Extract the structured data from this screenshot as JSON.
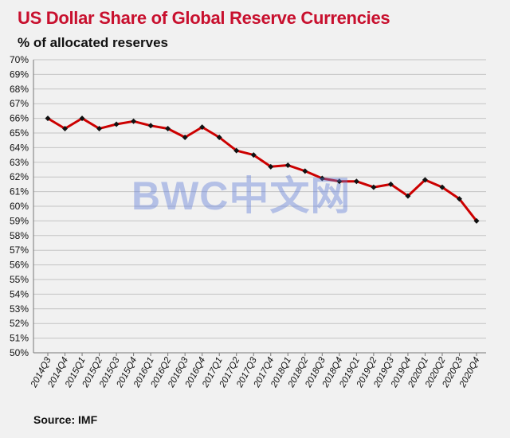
{
  "title": "US Dollar Share of Global  Reserve Currencies",
  "subtitle": "% of allocated reserves",
  "source": "Source: IMF",
  "watermark": "BWC中文网",
  "colors": {
    "title": "#c8102e",
    "line": "#cc0000",
    "marker": "#111111",
    "grid": "#c4c4c4",
    "background": "#f1f1f1"
  },
  "chart_data": {
    "type": "line",
    "title": "US Dollar Share of Global  Reserve Currencies",
    "ylabel": "% of allocated reserves",
    "xlabel": "",
    "ylim": [
      50,
      70
    ],
    "grid": true,
    "legend": "none",
    "y_ticks": [
      "50%",
      "51%",
      "52%",
      "53%",
      "54%",
      "55%",
      "56%",
      "57%",
      "58%",
      "59%",
      "60%",
      "61%",
      "62%",
      "63%",
      "64%",
      "65%",
      "66%",
      "67%",
      "68%",
      "69%",
      "70%"
    ],
    "categories": [
      "2014Q3",
      "2014Q4",
      "2015Q1",
      "2015Q2",
      "2015Q3",
      "2015Q4",
      "2016Q1",
      "2016Q2",
      "2016Q3",
      "2016Q4",
      "2017Q1",
      "2017Q2",
      "2017Q3",
      "2017Q4",
      "2018Q1",
      "2018Q2",
      "2018Q3",
      "2018Q4",
      "2019Q1",
      "2019Q2",
      "2019Q3",
      "2019Q4",
      "2020Q1",
      "2020Q2",
      "2020Q3",
      "2020Q4"
    ],
    "series": [
      {
        "values": [
          66.0,
          65.3,
          66.0,
          65.3,
          65.6,
          65.8,
          65.5,
          65.3,
          64.7,
          65.4,
          64.7,
          63.8,
          63.5,
          62.7,
          62.8,
          62.4,
          61.9,
          61.7,
          61.7,
          61.3,
          61.5,
          60.7,
          61.8,
          61.3,
          60.5,
          59.0
        ]
      }
    ]
  }
}
